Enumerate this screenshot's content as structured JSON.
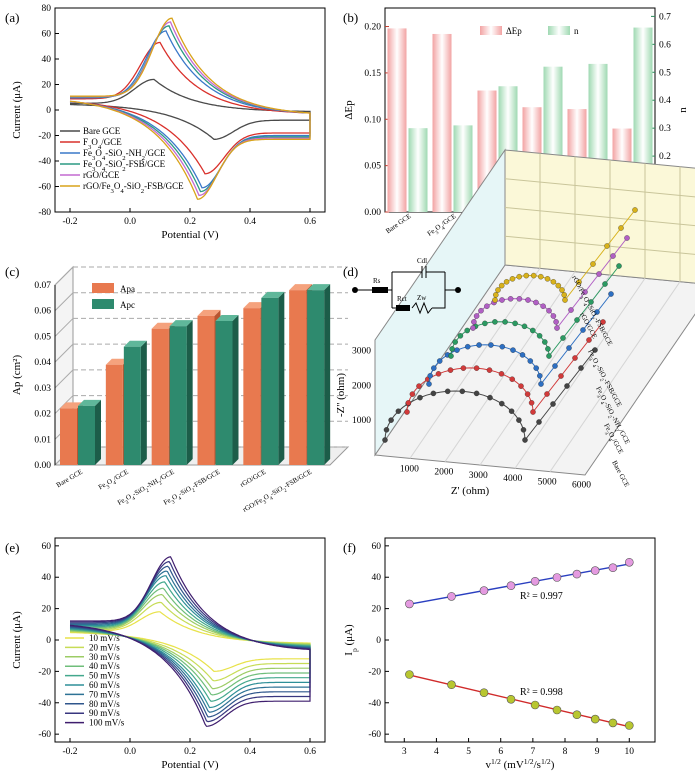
{
  "chart_data": [
    {
      "panel": "(a)",
      "type": "line",
      "xlabel": "Potential (V)",
      "ylabel": "Current (μA)",
      "xlim": [
        -0.25,
        0.65
      ],
      "ylim": [
        -80,
        80
      ],
      "xticks": [
        "-0.2",
        "0.0",
        "0.2",
        "0.4",
        "0.6"
      ],
      "yticks": [
        "80",
        "60",
        "40",
        "20",
        "0",
        "-20",
        "-40",
        "-60",
        "-80"
      ],
      "series": [
        {
          "name": "Bare GCE",
          "color": "#4a4a4a",
          "ipa": 24,
          "ipc": -23,
          "epa": 0.08,
          "epc": 0.28,
          "start": 13,
          "end": -8
        },
        {
          "name": "F3O4/GCE",
          "color": "#d9302b",
          "ipa": 53,
          "ipc": -50,
          "epa": 0.1,
          "epc": 0.25,
          "start": 22,
          "end": -18
        },
        {
          "name": "Fe3O4-SiO2-NH2/GCE",
          "color": "#3a78c9",
          "ipa": 62,
          "ipc": -61,
          "epa": 0.12,
          "epc": 0.24,
          "start": 24,
          "end": -20
        },
        {
          "name": "Fe3O4-SiO2-FSB/GCE",
          "color": "#2b9a84",
          "ipa": 66,
          "ipc": -64,
          "epa": 0.13,
          "epc": 0.235,
          "start": 25,
          "end": -21
        },
        {
          "name": "rGO/GCE",
          "color": "#c36ad1",
          "ipa": 69,
          "ipc": -67,
          "epa": 0.135,
          "epc": 0.23,
          "start": 26,
          "end": -22
        },
        {
          "name": "rGO/Fe3O4-SiO2-FSB/GCE",
          "color": "#d8a31a",
          "ipa": 72,
          "ipc": -70,
          "epa": 0.14,
          "epc": 0.225,
          "start": 27,
          "end": -23
        }
      ]
    },
    {
      "panel": "(b)",
      "type": "bar",
      "ylabel_left": "ΔEp",
      "ylabel_right": "n",
      "legend": [
        "ΔEp",
        "n"
      ],
      "categories": [
        "Bare GCE",
        "Fe3O4/GCE",
        "Fe3O4-SiO2-NH2/GCE",
        "Fe3O4-SiO2-FSB/GCE",
        "rGO/GCE",
        "rGO/Fe3O4-SiO2-FSB/GCE"
      ],
      "ylim_left": [
        0,
        0.22
      ],
      "yticks_left": [
        "0.00",
        "0.05",
        "0.10",
        "0.15",
        "0.20"
      ],
      "ylim_right": [
        0,
        0.73
      ],
      "yticks_right": [
        "0.0",
        "0.1",
        "0.2",
        "0.3",
        "0.4",
        "0.5",
        "0.6",
        "0.7"
      ],
      "series": [
        {
          "name": "ΔEp",
          "axis": "left",
          "values": [
            0.198,
            0.192,
            0.131,
            0.113,
            0.111,
            0.09
          ]
        },
        {
          "name": "n",
          "axis": "right",
          "values": [
            0.3,
            0.31,
            0.45,
            0.52,
            0.53,
            0.66
          ]
        }
      ]
    },
    {
      "panel": "(c)",
      "type": "bar",
      "ylabel": "Ap (cm²)",
      "legend": [
        "Apa",
        "Apc"
      ],
      "categories": [
        "Bare GCE",
        "Fe3O4/GCE",
        "Fe3O4-SiO2-NH2/GCE",
        "Fe3O4-SiO2-FSB/GCE",
        "rGO/GCE",
        "rGO/Fe3O4-SiO2-FSB/GCE"
      ],
      "ylim": [
        0,
        0.07
      ],
      "yticks": [
        "0.00",
        "0.01",
        "0.02",
        "0.03",
        "0.04",
        "0.05",
        "0.06",
        "0.07"
      ],
      "series": [
        {
          "name": "Apa",
          "values": [
            0.022,
            0.039,
            0.053,
            0.058,
            0.061,
            0.068
          ]
        },
        {
          "name": "Apc",
          "values": [
            0.023,
            0.046,
            0.054,
            0.056,
            0.065,
            0.068
          ]
        }
      ]
    },
    {
      "panel": "(d)",
      "type": "line",
      "xlabel": "Z' (ohm)",
      "ylabel": "-Z'' (ohm)",
      "xticks": [
        "1000",
        "2000",
        "3000",
        "4000",
        "5000",
        "6000"
      ],
      "yticks": [
        "1000",
        "2000",
        "3000"
      ],
      "series_labels": [
        "Bare GCE",
        "Fe3O4/GCE",
        "Fe3O4-SiO2-NH2/GCE",
        "Fe3O4-SiO2-FSB/GCE",
        "rGO/GCE",
        "rGO/Fe3O4-SiO2-FSB/GCE"
      ],
      "circuit_labels": [
        "Rs",
        "Cdl",
        "Rct",
        "Zw"
      ]
    },
    {
      "panel": "(e)",
      "type": "line",
      "xlabel": "Potential (V)",
      "ylabel": "Current (μA)",
      "xlim": [
        -0.25,
        0.65
      ],
      "ylim": [
        -65,
        65
      ],
      "xticks": [
        "-0.2",
        "0.0",
        "0.2",
        "0.4",
        "0.6"
      ],
      "yticks": [
        "60",
        "40",
        "20",
        "0",
        "-20",
        "-40",
        "-60"
      ],
      "series": [
        {
          "name": "10 mV/s",
          "ipa": 18,
          "ipc": -20
        },
        {
          "name": "20 mV/s",
          "ipa": 24,
          "ipc": -26
        },
        {
          "name": "30 mV/s",
          "ipa": 29,
          "ipc": -31
        },
        {
          "name": "40 mV/s",
          "ipa": 33,
          "ipc": -35
        },
        {
          "name": "50 mV/s",
          "ipa": 37,
          "ipc": -39
        },
        {
          "name": "60 mV/s",
          "ipa": 41,
          "ipc": -43
        },
        {
          "name": "70 mV/s",
          "ipa": 44,
          "ipc": -46
        },
        {
          "name": "80 mV/s",
          "ipa": 47,
          "ipc": -49
        },
        {
          "name": "90 mV/s",
          "ipa": 50,
          "ipc": -52
        },
        {
          "name": "100 mV/s",
          "ipa": 53,
          "ipc": -55
        }
      ]
    },
    {
      "panel": "(f)",
      "type": "scatter",
      "xlabel": "v1/2 (mV1/2/s1/2)",
      "ylabel": "Ip (μA)",
      "xlim": [
        2.4,
        10.8
      ],
      "ylim": [
        -65,
        65
      ],
      "xticks": [
        "3",
        "4",
        "5",
        "6",
        "7",
        "8",
        "9",
        "10"
      ],
      "yticks": [
        "60",
        "40",
        "20",
        "0",
        "-20",
        "-40",
        "-60"
      ],
      "x": [
        3.16,
        4.47,
        5.48,
        6.32,
        7.07,
        7.75,
        8.37,
        8.94,
        9.49,
        10.0
      ],
      "series": [
        {
          "name": "Ipa",
          "values": [
            23,
            27.8,
            31.5,
            34.6,
            37.4,
            39.8,
            42,
            44.2,
            46.1,
            49.5
          ],
          "fit_r2": "R² = 0.997"
        },
        {
          "name": "Ipc",
          "values": [
            -22,
            -28.5,
            -33.6,
            -37.8,
            -41.4,
            -44.6,
            -47.6,
            -50.4,
            -52.8,
            -54.5
          ],
          "fit_r2": "R² = 0.998"
        }
      ]
    }
  ]
}
